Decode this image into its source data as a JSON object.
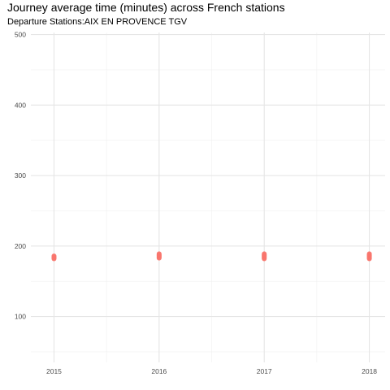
{
  "chart_data": {
    "type": "scatter",
    "title": "Journey average time (minutes) across French stations",
    "subtitle": "Departure Stations:AIX EN PROVENCE TGV",
    "xlabel": "",
    "ylabel": "",
    "x_ticks": [
      "2015",
      "2016",
      "2017",
      "2018"
    ],
    "y_ticks": [
      100,
      200,
      300,
      400,
      500
    ],
    "xlim": [
      2014.78,
      2018.15
    ],
    "ylim": [
      35,
      503
    ],
    "grid": true,
    "legend": "none",
    "point_color": "#F8766D",
    "points": [
      {
        "x": 2015,
        "y": 182
      },
      {
        "x": 2015,
        "y": 183
      },
      {
        "x": 2015,
        "y": 184
      },
      {
        "x": 2015,
        "y": 185
      },
      {
        "x": 2015,
        "y": 186
      },
      {
        "x": 2016,
        "y": 183
      },
      {
        "x": 2016,
        "y": 184
      },
      {
        "x": 2016,
        "y": 185
      },
      {
        "x": 2016,
        "y": 186
      },
      {
        "x": 2016,
        "y": 187
      },
      {
        "x": 2016,
        "y": 188
      },
      {
        "x": 2016,
        "y": 189
      },
      {
        "x": 2017,
        "y": 182
      },
      {
        "x": 2017,
        "y": 183
      },
      {
        "x": 2017,
        "y": 184
      },
      {
        "x": 2017,
        "y": 185
      },
      {
        "x": 2017,
        "y": 186
      },
      {
        "x": 2017,
        "y": 187
      },
      {
        "x": 2017,
        "y": 188
      },
      {
        "x": 2017,
        "y": 189
      },
      {
        "x": 2018,
        "y": 182
      },
      {
        "x": 2018,
        "y": 183
      },
      {
        "x": 2018,
        "y": 184
      },
      {
        "x": 2018,
        "y": 185
      },
      {
        "x": 2018,
        "y": 186
      },
      {
        "x": 2018,
        "y": 187
      },
      {
        "x": 2018,
        "y": 188
      },
      {
        "x": 2018,
        "y": 189
      }
    ]
  }
}
